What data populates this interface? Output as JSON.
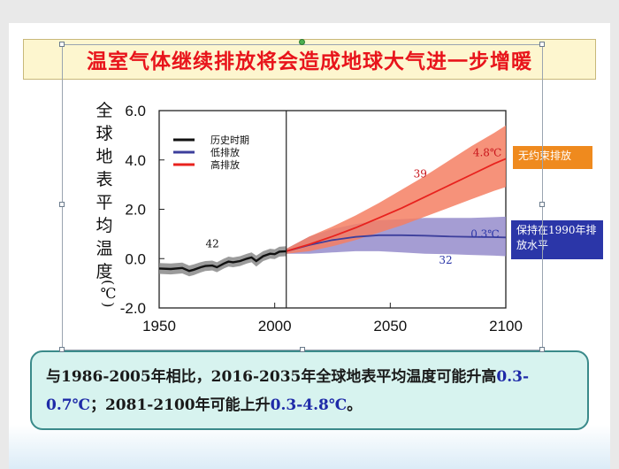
{
  "slide": {
    "title": "温室气体继续排放将会造成地球大气进一步增暖",
    "ylabel_text": "全球地表平均温度",
    "ylabel_unit": "(℃)",
    "callout_high": "无约束排放",
    "callout_low": "保持在1990年排放水平",
    "summary": {
      "part1": "与1986-2005年相比，2016-2035年全球地表平均温度可能升高",
      "range1": "0.3-0.7℃",
      "part2": "；2081-2100年可能上升",
      "range2": "0.3-4.8℃",
      "part3": "。"
    }
  },
  "colors": {
    "title": "#e8141b",
    "historical": "#111111",
    "historical_band": "#8a8a8a",
    "low": "#3d3f9c",
    "low_band": "#8f84c8",
    "high": "#e8221e",
    "high_band": "#f47f63",
    "callout_high_bg": "#ef8a1e",
    "callout_low_bg": "#2b36a8",
    "annotation_high": "#c8141b",
    "annotation_low": "#2b36a8"
  },
  "chart_data": {
    "type": "line",
    "xlim": [
      1950,
      2100
    ],
    "ylim": [
      -2.0,
      6.0
    ],
    "x_ticks": [
      "1950",
      "2000",
      "2050",
      "2100"
    ],
    "y_ticks": [
      "6.0",
      "4.0",
      "2.0",
      "0.0",
      "-2.0"
    ],
    "grid": false,
    "legend_position": "top-left",
    "divider_x": 2005,
    "legend": [
      "历史时期",
      "低排放",
      "高排放"
    ],
    "series": [
      {
        "name": "历史时期",
        "x": [
          1950,
          1955,
          1960,
          1963,
          1965,
          1968,
          1970,
          1973,
          1975,
          1978,
          1980,
          1982,
          1985,
          1988,
          1990,
          1992,
          1995,
          1998,
          2000,
          2002,
          2005
        ],
        "values": [
          -0.4,
          -0.42,
          -0.38,
          -0.5,
          -0.45,
          -0.35,
          -0.3,
          -0.28,
          -0.35,
          -0.2,
          -0.12,
          -0.15,
          -0.1,
          0.0,
          0.05,
          -0.1,
          0.1,
          0.2,
          0.18,
          0.28,
          0.3
        ],
        "lower": [
          -0.62,
          -0.64,
          -0.6,
          -0.72,
          -0.67,
          -0.56,
          -0.5,
          -0.48,
          -0.55,
          -0.4,
          -0.32,
          -0.35,
          -0.3,
          -0.2,
          -0.15,
          -0.32,
          -0.1,
          0.0,
          -0.02,
          0.08,
          0.1
        ],
        "upper": [
          -0.18,
          -0.2,
          -0.16,
          -0.28,
          -0.23,
          -0.14,
          -0.1,
          -0.08,
          -0.15,
          0.0,
          0.08,
          0.05,
          0.1,
          0.2,
          0.25,
          0.12,
          0.3,
          0.4,
          0.38,
          0.48,
          0.5
        ]
      },
      {
        "name": "低排放",
        "x": [
          2005,
          2015,
          2025,
          2035,
          2045,
          2055,
          2065,
          2075,
          2085,
          2095,
          2100
        ],
        "values": [
          0.3,
          0.55,
          0.75,
          0.88,
          0.95,
          0.95,
          0.93,
          0.9,
          0.88,
          0.87,
          0.86
        ],
        "lower": [
          0.2,
          0.2,
          0.25,
          0.3,
          0.3,
          0.25,
          0.2,
          0.18,
          0.15,
          0.12,
          0.1
        ],
        "upper": [
          0.4,
          0.9,
          1.2,
          1.4,
          1.55,
          1.6,
          1.65,
          1.65,
          1.65,
          1.68,
          1.7
        ]
      },
      {
        "name": "高排放",
        "x": [
          2005,
          2015,
          2025,
          2035,
          2045,
          2055,
          2065,
          2075,
          2085,
          2095,
          2100
        ],
        "values": [
          0.3,
          0.58,
          0.9,
          1.25,
          1.65,
          2.05,
          2.5,
          2.95,
          3.4,
          3.85,
          4.05
        ],
        "lower": [
          0.2,
          0.3,
          0.5,
          0.75,
          1.05,
          1.35,
          1.7,
          2.05,
          2.4,
          2.75,
          2.9
        ],
        "upper": [
          0.4,
          0.9,
          1.3,
          1.75,
          2.25,
          2.8,
          3.35,
          3.95,
          4.55,
          5.1,
          5.4
        ]
      }
    ],
    "annotations": [
      {
        "text": "42",
        "x": 1973,
        "y": 0.45,
        "color": "#111111"
      },
      {
        "text": "39",
        "x": 2063,
        "y": 3.3,
        "color": "#c8141b"
      },
      {
        "text": "32",
        "x": 2074,
        "y": -0.2,
        "color": "#2b36a8"
      },
      {
        "text": "4.8℃",
        "x": 2092,
        "y": 4.15,
        "color": "#c8141b"
      },
      {
        "text": "0.3℃",
        "x": 2091,
        "y": 0.85,
        "color": "#2b36a8"
      }
    ]
  }
}
